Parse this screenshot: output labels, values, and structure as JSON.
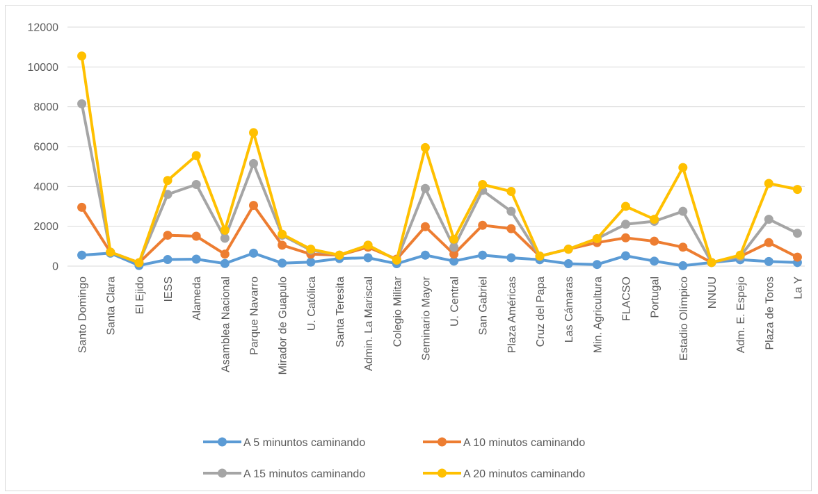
{
  "chart_data": {
    "type": "line",
    "title": "",
    "xlabel": "",
    "ylabel": "",
    "ylim": [
      0,
      12000
    ],
    "yticks": [
      "0",
      "2000",
      "4000",
      "6000",
      "8000",
      "10000",
      "12000"
    ],
    "grid": true,
    "legend_position": "bottom",
    "categories": [
      "Santo Domingo",
      "Santa Clara",
      "El Ejido",
      "IESS",
      "Alameda",
      "Asamblea Nacional",
      "Parque Navarro",
      "Mirador de Guapulo",
      "U. Católica",
      "Santa Teresita",
      "Admin. La Mariscal",
      "Colegio Militar",
      "Seminario Mayor",
      "U. Central",
      "San Gabriel",
      "Plaza Américas",
      "Cruz del Papa",
      "Las Cámaras",
      "Min. Agricultura",
      "FLACSO",
      "Portugal",
      "Estadio Olímpico",
      "NNUU",
      "Adm. E. Espejo",
      "Plaza de Toros",
      "La Y"
    ],
    "series": [
      {
        "name": "A 5 minuntos caminando",
        "color": "#5b9bd5",
        "values": [
          550,
          650,
          30,
          330,
          350,
          130,
          650,
          150,
          200,
          380,
          420,
          120,
          550,
          250,
          550,
          420,
          320,
          120,
          80,
          520,
          250,
          20,
          180,
          320,
          230,
          180
        ]
      },
      {
        "name": "A 10 minutos caminando",
        "color": "#ed7d31",
        "values": [
          2950,
          700,
          170,
          1550,
          1500,
          600,
          3050,
          1050,
          600,
          550,
          950,
          350,
          1980,
          600,
          2050,
          1880,
          500,
          850,
          1180,
          1420,
          1250,
          950,
          180,
          480,
          1180,
          450
        ]
      },
      {
        "name": "A 15 minutos caminando",
        "color": "#a5a5a5",
        "values": [
          8150,
          700,
          170,
          3600,
          4100,
          1400,
          5150,
          1550,
          800,
          550,
          1050,
          300,
          3900,
          950,
          3800,
          2750,
          500,
          850,
          1380,
          2100,
          2250,
          2750,
          180,
          480,
          2350,
          1650
        ]
      },
      {
        "name": "A 20 minutos caminando",
        "color": "#ffc000",
        "values": [
          10550,
          700,
          170,
          4300,
          5550,
          1800,
          6700,
          1600,
          850,
          550,
          1050,
          300,
          5950,
          1350,
          4100,
          3750,
          500,
          850,
          1380,
          3000,
          2350,
          4950,
          180,
          550,
          4150,
          3850
        ]
      }
    ]
  }
}
